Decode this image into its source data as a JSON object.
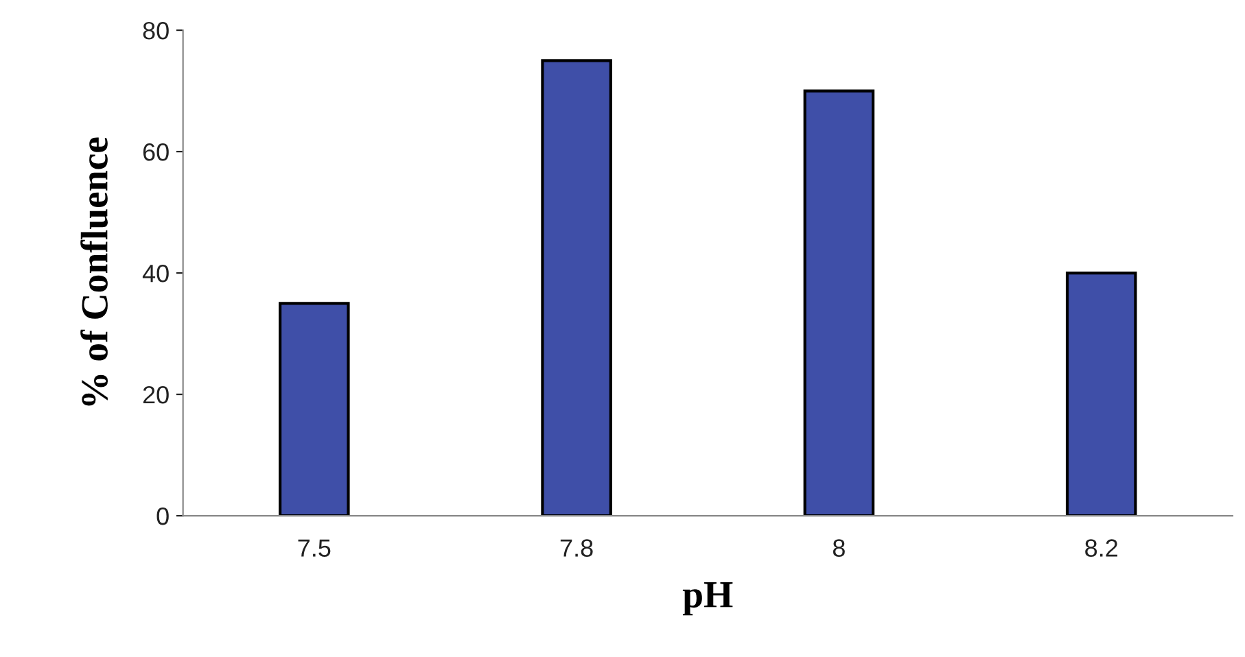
{
  "chart_data": {
    "type": "bar",
    "xlabel": "pH",
    "ylabel": "% of Confluence",
    "categories": [
      "7.5",
      "7.8",
      "8",
      "8.2"
    ],
    "values": [
      35,
      75,
      70,
      40
    ],
    "color": "#3f4fa8",
    "ylim": [
      0,
      80
    ],
    "yticks": [
      0,
      20,
      40,
      60,
      80
    ],
    "grid": false,
    "legend": false
  }
}
